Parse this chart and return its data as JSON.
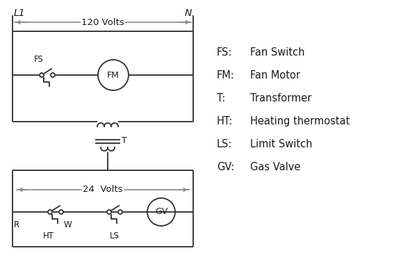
{
  "bg_color": "#ffffff",
  "line_color": "#3a3a3a",
  "arrow_color": "#888888",
  "text_color": "#1a1a1a",
  "legend_items": [
    [
      "FS:",
      "Fan Switch"
    ],
    [
      "FM:",
      "Fan Motor"
    ],
    [
      "T:",
      "Transformer"
    ],
    [
      "HT:",
      "Heating thermostat"
    ],
    [
      "LS:",
      "Limit Switch"
    ],
    [
      "GV:",
      "Gas Valve"
    ]
  ],
  "L1_label": "L1",
  "N_label": "N",
  "volts120": "120 Volts",
  "volts24": "24  Volts"
}
